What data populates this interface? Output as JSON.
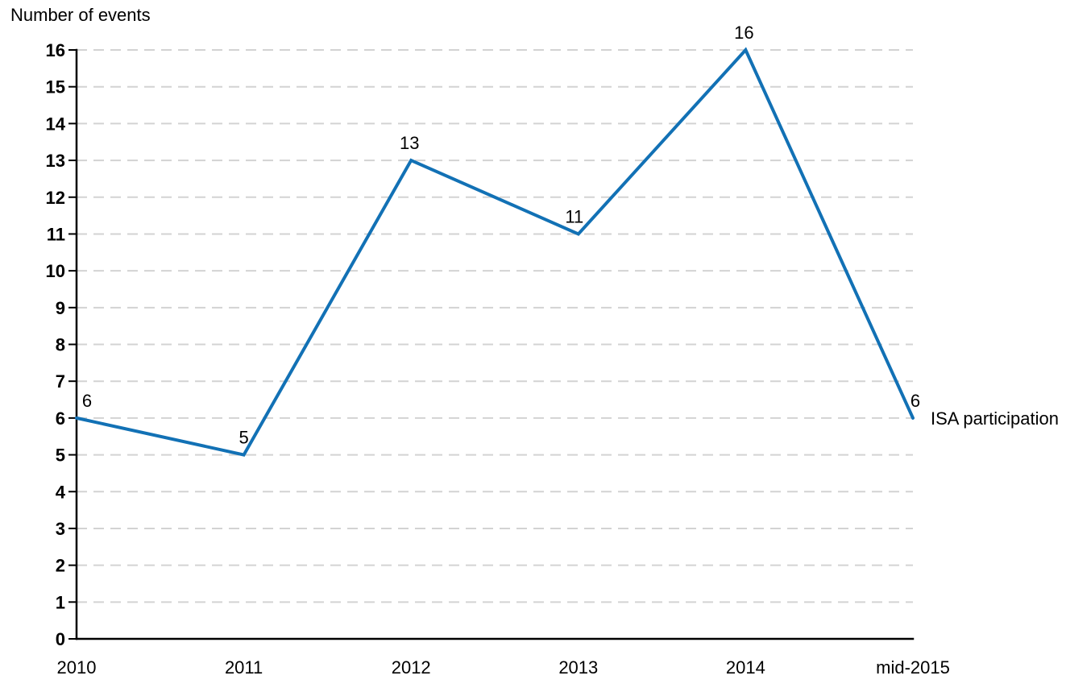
{
  "chart_data": {
    "type": "line",
    "title": "Number of events",
    "categories": [
      "2010",
      "2011",
      "2012",
      "2013",
      "2014",
      "mid-2015"
    ],
    "series": [
      {
        "name": "ISA participation",
        "values": [
          6,
          5,
          13,
          11,
          16,
          6
        ]
      }
    ],
    "ylabel": "Number of events",
    "xlabel": "",
    "ylim": [
      0,
      16
    ],
    "ytick_step": 1,
    "grid": "horizontal dashed gridlines at every integer",
    "data_labels": [
      6,
      5,
      13,
      11,
      16,
      6
    ],
    "data_label_dx": [
      13,
      0,
      -2,
      -5,
      -2,
      3
    ],
    "legend_position": "right-of-last-point",
    "colors": {
      "line": "#1271B5",
      "grid": "#D3D3D3",
      "axis": "#000000",
      "text": "#000000",
      "background": "#FFFFFF"
    }
  }
}
